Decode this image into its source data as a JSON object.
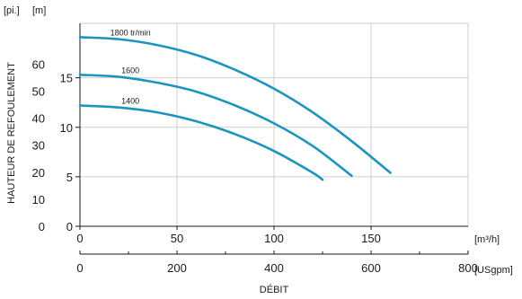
{
  "chart_data": {
    "type": "line",
    "title": "",
    "xlabel": "DÉBIT",
    "ylabel": "HAUTEUR DE REFOULEMENT",
    "units": {
      "x_primary": "[m³/h]",
      "x_secondary": "[USgpm]",
      "y_feet": "[pi.]",
      "y_meters": "[m]"
    },
    "x_primary": {
      "lim": [
        0,
        200
      ],
      "ticks": [
        0,
        50,
        100,
        150
      ]
    },
    "x_secondary": {
      "ticks": [
        0,
        200,
        400,
        600,
        800
      ],
      "minor_ticks": [
        100,
        300,
        500,
        700,
        900
      ]
    },
    "y_meters": {
      "lim": [
        0,
        20.5
      ],
      "ticks": [
        0,
        5,
        10,
        15
      ]
    },
    "y_feet": {
      "ticks": [
        0,
        10,
        20,
        30,
        40,
        50,
        60
      ]
    },
    "grid": true,
    "series": [
      {
        "name": "1800 tr/min",
        "x": [
          0,
          20,
          40,
          60,
          80,
          100,
          120,
          140,
          160
        ],
        "y": [
          19.1,
          18.9,
          18.3,
          17.3,
          15.8,
          13.9,
          11.5,
          8.6,
          5.4
        ]
      },
      {
        "name": "1600",
        "x": [
          0,
          20,
          40,
          60,
          80,
          100,
          120,
          140
        ],
        "y": [
          15.3,
          15.1,
          14.5,
          13.6,
          12.2,
          10.4,
          8.1,
          5.1
        ]
      },
      {
        "name": "1400",
        "x": [
          0,
          20,
          40,
          60,
          80,
          100,
          120,
          125
        ],
        "y": [
          12.2,
          12.0,
          11.5,
          10.6,
          9.3,
          7.6,
          5.4,
          4.7
        ]
      }
    ],
    "line_color": "#1a95bf"
  }
}
